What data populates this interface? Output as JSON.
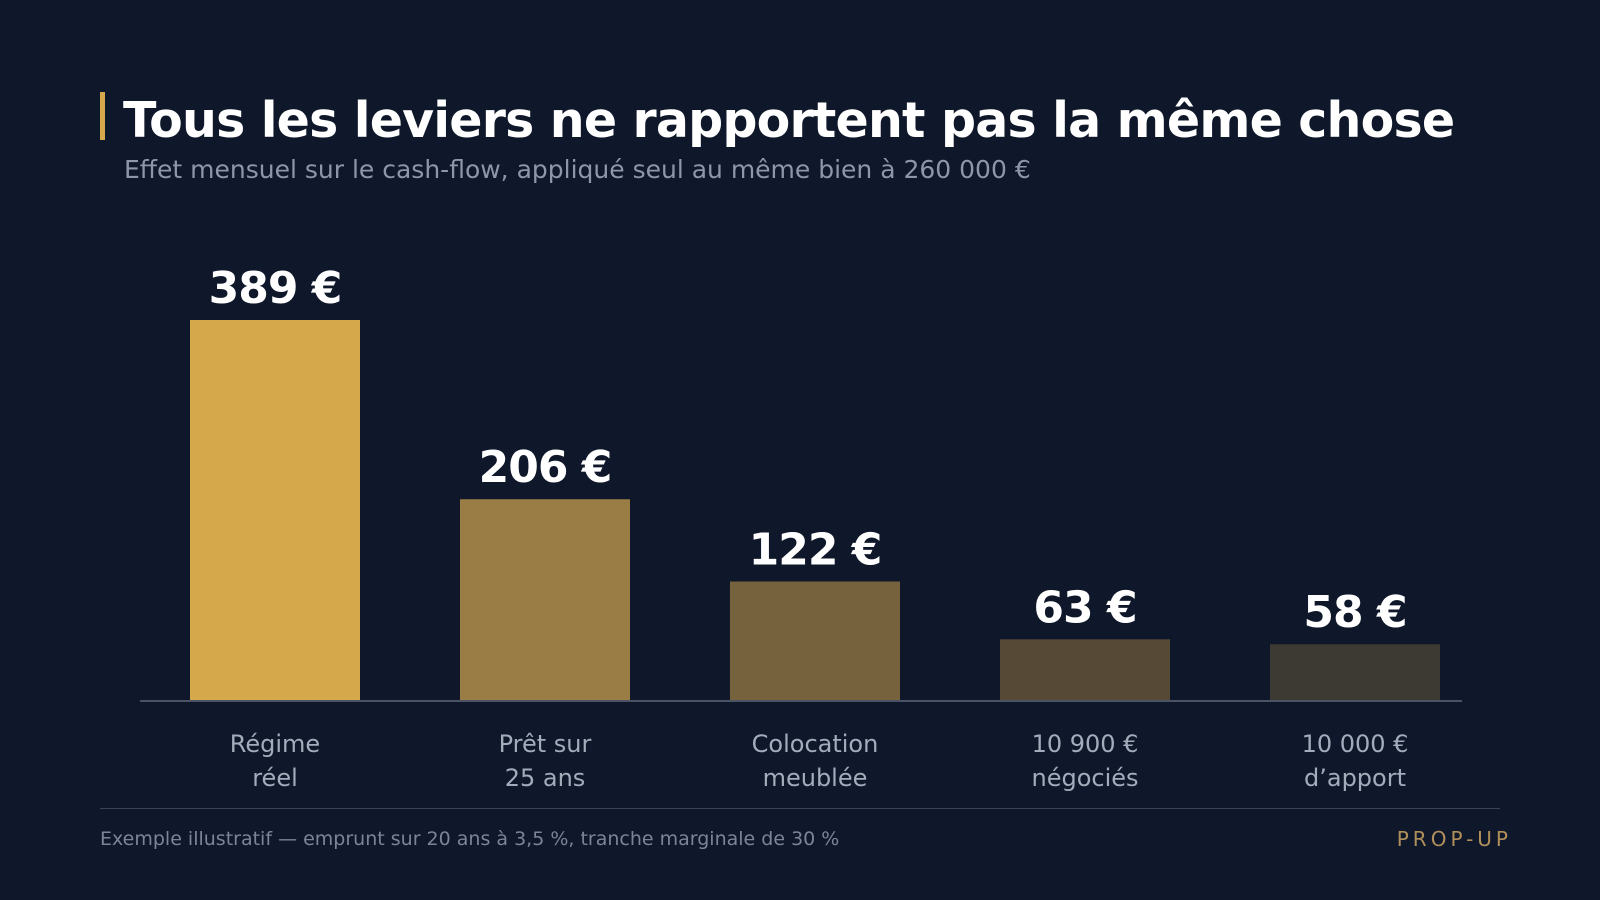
{
  "header": {
    "title": "Tous les leviers ne rapportent pas la même chose",
    "subtitle": "Effet mensuel sur le cash-flow, appliqué seul au même bien à 260 000 €"
  },
  "chart_data": {
    "type": "bar",
    "categories": [
      [
        "Régime",
        "réel"
      ],
      [
        "Prêt sur",
        "25 ans"
      ],
      [
        "Colocation",
        "meublée"
      ],
      [
        "10 900 €",
        "négociés"
      ],
      [
        "10 000 €",
        "d’apport"
      ]
    ],
    "values": [
      389,
      206,
      122,
      63,
      58
    ],
    "value_labels": [
      "389 €",
      "206 €",
      "122 €",
      "63 €",
      "58 €"
    ],
    "colors": [
      "#d4a84b",
      "#9a7d45",
      "#76623d",
      "#564a36",
      "#3c3a32"
    ],
    "unit": "€",
    "ylim": [
      0,
      389
    ],
    "grid": false,
    "legend": "none"
  },
  "footer": {
    "note": "Exemple illustratif — emprunt sur 20 ans à 3,5 %, tranche marginale de 30 %",
    "brand": "PROP-UP"
  },
  "colors": {
    "background": "#0f172a",
    "accent": "#d4a84b",
    "title": "#ffffff",
    "subtitle": "#8d97a8",
    "axis": "#4a5264",
    "category_label": "#a3acbb",
    "brand": "#b08f5a"
  }
}
